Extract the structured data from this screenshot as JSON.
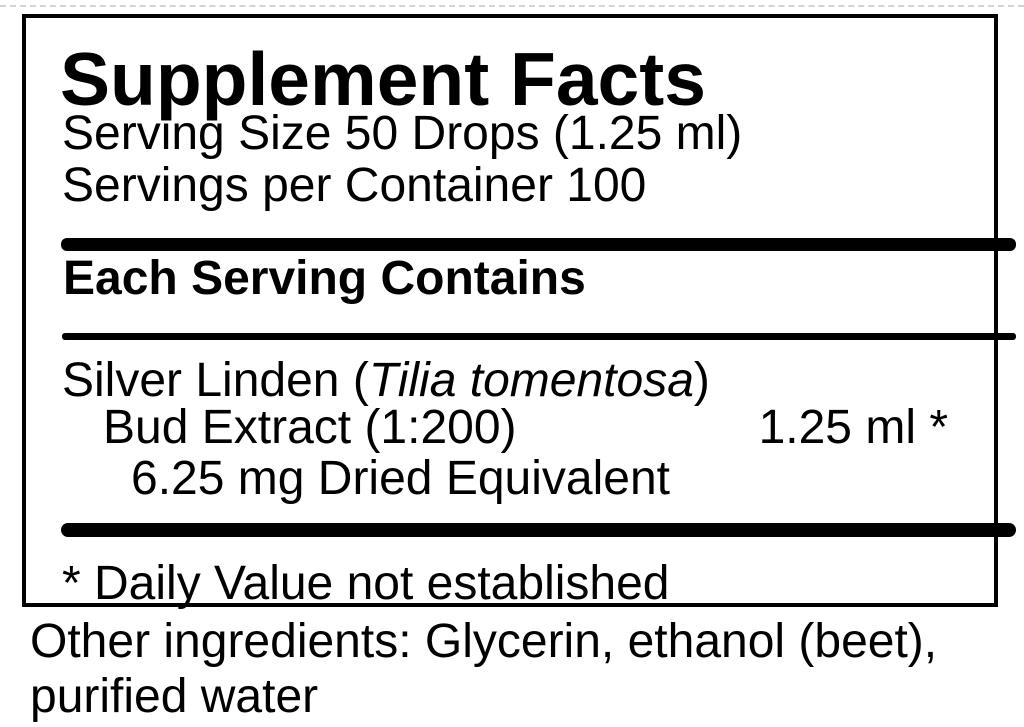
{
  "label": {
    "title": "Supplement Facts",
    "serving_size": "Serving Size 50 Drops (1.25 ml)",
    "servings_per_container": "Servings per Container 100",
    "section_header": "Each Serving Contains",
    "ingredient": {
      "name_prefix": "Silver Linden (",
      "latin_name": "Tilia tomentosa",
      "name_suffix": ")",
      "line2": "Bud Extract (1:200)",
      "amount": "1.25 ml *",
      "line3": "6.25 mg Dried Equivalent"
    },
    "footnote": "* Daily Value not established",
    "other_ingredients": "Other ingredients: Glycerin, ethanol (beet), purified water"
  },
  "colors": {
    "text": "#000000",
    "background": "#ffffff",
    "rule": "#000000"
  }
}
